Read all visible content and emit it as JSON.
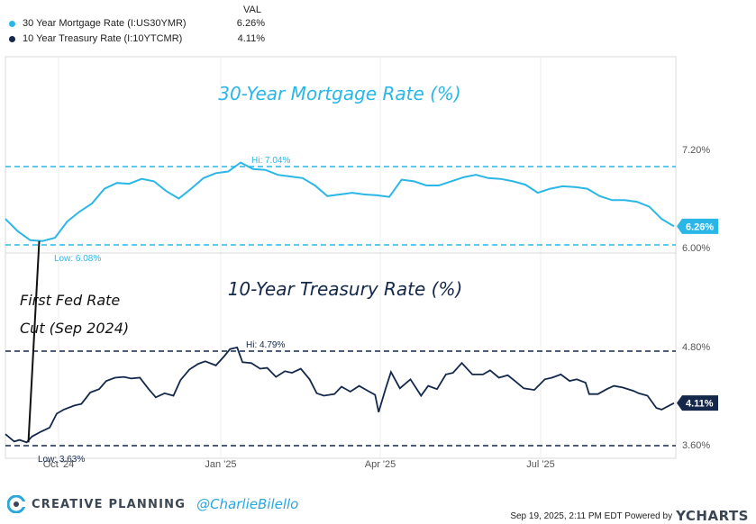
{
  "legend": {
    "header": "VAL",
    "items": [
      {
        "label": "30 Year Mortgage Rate (I:US30YMR)",
        "value": "6.26%",
        "color": "#2ab7e8"
      },
      {
        "label": "10 Year Treasury Rate (I:10YTCMR)",
        "value": "4.11%",
        "color": "#14284b"
      }
    ]
  },
  "chart_data": [
    {
      "type": "line",
      "title": "30-Year Mortgage Rate (%)",
      "y_ticks": [
        "7.20%",
        "6.00%"
      ],
      "ylim": [
        6.0,
        7.2
      ],
      "xlim": [
        "2024-09-05",
        "2025-09-19"
      ],
      "color": "#2ab7e8",
      "hi_label": "Hi: 7.04%",
      "low_label": "Low: 6.08%",
      "last_label": "6.26%",
      "hi_value": 7.04,
      "low_value": 6.08,
      "last_value": 6.26,
      "series": [
        {
          "x": [
            "2024-09-05",
            "2024-09-12",
            "2024-09-19",
            "2024-09-26",
            "2024-10-03",
            "2024-10-10",
            "2024-10-17",
            "2024-10-24",
            "2024-10-31",
            "2024-11-07",
            "2024-11-14",
            "2024-11-21",
            "2024-11-28",
            "2024-12-05",
            "2024-12-12",
            "2024-12-19",
            "2024-12-26",
            "2025-01-02",
            "2025-01-09",
            "2025-01-16",
            "2025-01-23",
            "2025-01-30",
            "2025-02-06",
            "2025-02-13",
            "2025-02-20",
            "2025-02-27",
            "2025-03-06",
            "2025-03-13",
            "2025-03-20",
            "2025-03-27",
            "2025-04-03",
            "2025-04-10",
            "2025-04-17",
            "2025-04-24",
            "2025-05-01",
            "2025-05-08",
            "2025-05-15",
            "2025-05-22",
            "2025-05-29",
            "2025-06-05",
            "2025-06-12",
            "2025-06-19",
            "2025-06-26",
            "2025-07-03",
            "2025-07-10",
            "2025-07-17",
            "2025-07-24",
            "2025-07-31",
            "2025-08-07",
            "2025-08-14",
            "2025-08-21",
            "2025-08-28",
            "2025-09-04",
            "2025-09-11",
            "2025-09-18"
          ],
          "values": [
            6.35,
            6.2,
            6.09,
            6.08,
            6.12,
            6.32,
            6.44,
            6.54,
            6.72,
            6.79,
            6.78,
            6.84,
            6.81,
            6.69,
            6.6,
            6.72,
            6.85,
            6.91,
            6.93,
            7.04,
            6.96,
            6.95,
            6.89,
            6.87,
            6.85,
            6.76,
            6.63,
            6.65,
            6.67,
            6.65,
            6.64,
            6.62,
            6.83,
            6.81,
            6.76,
            6.76,
            6.81,
            6.86,
            6.89,
            6.85,
            6.84,
            6.81,
            6.77,
            6.67,
            6.72,
            6.75,
            6.74,
            6.72,
            6.63,
            6.58,
            6.58,
            6.56,
            6.5,
            6.35,
            6.26
          ]
        }
      ]
    },
    {
      "type": "line",
      "title": "10-Year Treasury Rate (%)",
      "y_ticks": [
        "4.80%",
        "3.60%"
      ],
      "ylim": [
        3.6,
        4.8
      ],
      "xlim": [
        "2024-09-05",
        "2025-09-19"
      ],
      "color": "#14284b",
      "hi_label": "Hi: 4.79%",
      "low_label": "Low: 3.63%",
      "last_label": "4.11%",
      "hi_value": 4.79,
      "low_value": 3.63,
      "last_value": 4.11,
      "x_ticks": [
        "Oct '24",
        "Jan '25",
        "Apr '25",
        "Jul '25"
      ],
      "x_tick_dates": [
        "2024-10-01",
        "2025-01-01",
        "2025-04-01",
        "2025-07-01"
      ],
      "series": [
        {
          "x": [
            "2024-09-05",
            "2024-09-10",
            "2024-09-13",
            "2024-09-17",
            "2024-09-20",
            "2024-09-25",
            "2024-09-30",
            "2024-10-04",
            "2024-10-08",
            "2024-10-14",
            "2024-10-18",
            "2024-10-23",
            "2024-10-28",
            "2024-11-01",
            "2024-11-06",
            "2024-11-11",
            "2024-11-15",
            "2024-11-20",
            "2024-11-25",
            "2024-11-29",
            "2024-12-04",
            "2024-12-09",
            "2024-12-13",
            "2024-12-18",
            "2024-12-23",
            "2024-12-27",
            "2025-01-02",
            "2025-01-07",
            "2025-01-10",
            "2025-01-14",
            "2025-01-17",
            "2025-01-22",
            "2025-01-27",
            "2025-01-31",
            "2025-02-05",
            "2025-02-10",
            "2025-02-14",
            "2025-02-19",
            "2025-02-24",
            "2025-02-28",
            "2025-03-04",
            "2025-03-10",
            "2025-03-14",
            "2025-03-19",
            "2025-03-24",
            "2025-03-28",
            "2025-04-02",
            "2025-04-04",
            "2025-04-08",
            "2025-04-11",
            "2025-04-16",
            "2025-04-22",
            "2025-04-28",
            "2025-05-02",
            "2025-05-07",
            "2025-05-12",
            "2025-05-16",
            "2025-05-21",
            "2025-05-27",
            "2025-06-02",
            "2025-06-06",
            "2025-06-11",
            "2025-06-16",
            "2025-06-20",
            "2025-06-25",
            "2025-07-01",
            "2025-07-07",
            "2025-07-11",
            "2025-07-16",
            "2025-07-21",
            "2025-07-25",
            "2025-07-30",
            "2025-08-01",
            "2025-08-06",
            "2025-08-11",
            "2025-08-15",
            "2025-08-20",
            "2025-08-26",
            "2025-08-29",
            "2025-09-03",
            "2025-09-08",
            "2025-09-11",
            "2025-09-18"
          ],
          "values": [
            3.73,
            3.64,
            3.66,
            3.63,
            3.7,
            3.76,
            3.81,
            3.98,
            4.03,
            4.08,
            4.1,
            4.24,
            4.28,
            4.38,
            4.42,
            4.43,
            4.41,
            4.42,
            4.28,
            4.18,
            4.23,
            4.2,
            4.39,
            4.52,
            4.59,
            4.62,
            4.57,
            4.69,
            4.77,
            4.79,
            4.61,
            4.6,
            4.53,
            4.54,
            4.43,
            4.5,
            4.48,
            4.53,
            4.4,
            4.23,
            4.2,
            4.22,
            4.31,
            4.25,
            4.32,
            4.27,
            4.21,
            4.0,
            4.29,
            4.49,
            4.29,
            4.4,
            4.2,
            4.32,
            4.28,
            4.46,
            4.48,
            4.6,
            4.46,
            4.46,
            4.51,
            4.42,
            4.45,
            4.38,
            4.29,
            4.27,
            4.4,
            4.42,
            4.46,
            4.38,
            4.4,
            4.36,
            4.22,
            4.22,
            4.28,
            4.32,
            4.3,
            4.26,
            4.23,
            4.2,
            4.05,
            4.03,
            4.11
          ]
        }
      ]
    }
  ],
  "annotations": {
    "fed_cut_line1": "First Fed Rate",
    "fed_cut_line2": "Cut (Sep 2024)",
    "fed_cut_date": "2024-09-18"
  },
  "footer": {
    "brand": "CREATIVE PLANNING",
    "handle": "@CharlieBilello",
    "timestamp": "Sep 19, 2025, 2:11 PM EDT Powered by",
    "ycharts": "YCHARTS"
  }
}
